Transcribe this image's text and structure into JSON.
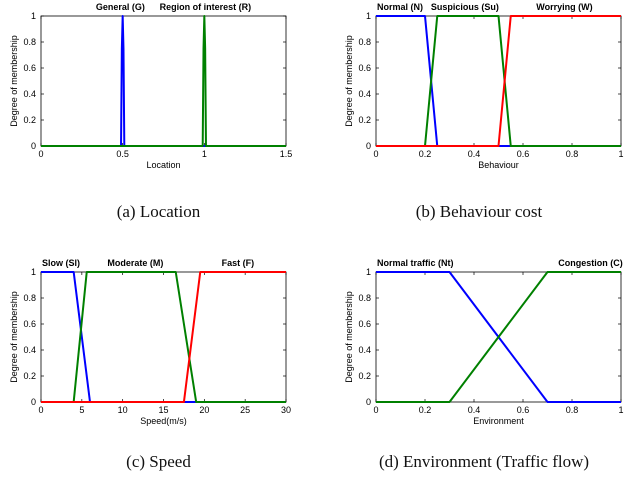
{
  "colors": {
    "blue": "#0000ff",
    "green": "#008000",
    "red": "#ff0000",
    "axis": "#000000"
  },
  "chart_data": [
    {
      "type": "line",
      "caption": "(a) Location",
      "xlabel": "Location",
      "ylabel": "Degree of membership",
      "xlim": [
        0,
        1.5
      ],
      "ylim": [
        0,
        1
      ],
      "xticks": [
        "0",
        "0.5",
        "1",
        "1.5"
      ],
      "yticks": [
        "0",
        "0.2",
        "0.4",
        "0.6",
        "0.8",
        "1"
      ],
      "series": [
        {
          "name": "General (G)",
          "color": "blue",
          "x": [
            0,
            0.49,
            0.495,
            0.5,
            0.505,
            0.51,
            1.5
          ],
          "y": [
            0,
            0,
            0.75,
            1,
            0.75,
            0,
            0
          ]
        },
        {
          "name": "Region of interest (R)",
          "color": "green",
          "x": [
            0,
            0.99,
            0.995,
            1,
            1.005,
            1.01,
            1.5
          ],
          "y": [
            0,
            0,
            0.75,
            1,
            0.75,
            0,
            0
          ]
        }
      ],
      "annotations": [
        {
          "text": "General (G)",
          "x": 0.33,
          "y": 1.06
        },
        {
          "text": "Region of interest (R)",
          "x": 0.72,
          "y": 1.06
        }
      ]
    },
    {
      "type": "line",
      "caption": "(b) Behaviour cost",
      "xlabel": "Behaviour",
      "ylabel": "Degree of membership",
      "xlim": [
        0,
        1
      ],
      "ylim": [
        0,
        1
      ],
      "xticks": [
        "0",
        "0.2",
        "0.4",
        "0.6",
        "0.8",
        "1"
      ],
      "yticks": [
        "0",
        "0.2",
        "0.4",
        "0.6",
        "0.8",
        "1"
      ],
      "series": [
        {
          "name": "Normal (N)",
          "color": "blue",
          "x": [
            0,
            0.2,
            0.25,
            1
          ],
          "y": [
            1,
            1,
            0,
            0
          ]
        },
        {
          "name": "Suspicious (Su)",
          "color": "green",
          "x": [
            0,
            0.2,
            0.25,
            0.5,
            0.55,
            1
          ],
          "y": [
            0,
            0,
            1,
            1,
            0,
            0
          ]
        },
        {
          "name": "Worrying (W)",
          "color": "red",
          "x": [
            0,
            0.5,
            0.55,
            1
          ],
          "y": [
            0,
            0,
            1,
            1
          ]
        }
      ],
      "annotations": [
        {
          "text": "Normal (N)",
          "x": 0.0,
          "y": 1.06
        },
        {
          "text": "Suspicious (Su)",
          "x": 0.22,
          "y": 1.06
        },
        {
          "text": "Worrying (W)",
          "x": 0.65,
          "y": 1.06
        }
      ]
    },
    {
      "type": "line",
      "caption": "(c) Speed",
      "xlabel": "Speed(m/s)",
      "ylabel": "Degree of membership",
      "xlim": [
        0,
        30
      ],
      "ylim": [
        0,
        1
      ],
      "xticks": [
        "0",
        "5",
        "10",
        "15",
        "20",
        "25",
        "30"
      ],
      "yticks": [
        "0",
        "0.2",
        "0.4",
        "0.6",
        "0.8",
        "1"
      ],
      "series": [
        {
          "name": "Slow (Sl)",
          "color": "blue",
          "x": [
            0,
            4,
            6,
            30
          ],
          "y": [
            1,
            1,
            0,
            0
          ]
        },
        {
          "name": "Moderate (M)",
          "color": "green",
          "x": [
            0,
            4,
            5.6,
            16.5,
            19,
            30
          ],
          "y": [
            0,
            0,
            1,
            1,
            0,
            0
          ]
        },
        {
          "name": "Fast (F)",
          "color": "red",
          "x": [
            0,
            17.5,
            19.5,
            30
          ],
          "y": [
            0,
            0,
            1,
            1
          ]
        }
      ],
      "annotations": [
        {
          "text": "Slow (Sl)",
          "x": 0.0,
          "y": 1.06
        },
        {
          "text": "Moderate (M)",
          "x": 8.0,
          "y": 1.06
        },
        {
          "text": "Fast (F)",
          "x": 22.0,
          "y": 1.06
        }
      ]
    },
    {
      "type": "line",
      "caption": "(d) Environment (Traffic flow)",
      "xlabel": "Environment",
      "ylabel": "Degree of membership",
      "xlim": [
        0,
        1
      ],
      "ylim": [
        0,
        1
      ],
      "xticks": [
        "0",
        "0.2",
        "0.4",
        "0.6",
        "0.8",
        "1"
      ],
      "yticks": [
        "0",
        "0.2",
        "0.4",
        "0.6",
        "0.8",
        "1"
      ],
      "series": [
        {
          "name": "Normal traffic (Nt)",
          "color": "blue",
          "x": [
            0,
            0.3,
            0.7,
            1
          ],
          "y": [
            1,
            1,
            0,
            0
          ]
        },
        {
          "name": "Congestion (C)",
          "color": "green",
          "x": [
            0,
            0.3,
            0.7,
            1
          ],
          "y": [
            0,
            0,
            1,
            1
          ]
        }
      ],
      "annotations": [
        {
          "text": "Normal traffic (Nt)",
          "x": 0.0,
          "y": 1.06
        },
        {
          "text": "Congestion (C)",
          "x": 0.74,
          "y": 1.06
        }
      ]
    }
  ]
}
